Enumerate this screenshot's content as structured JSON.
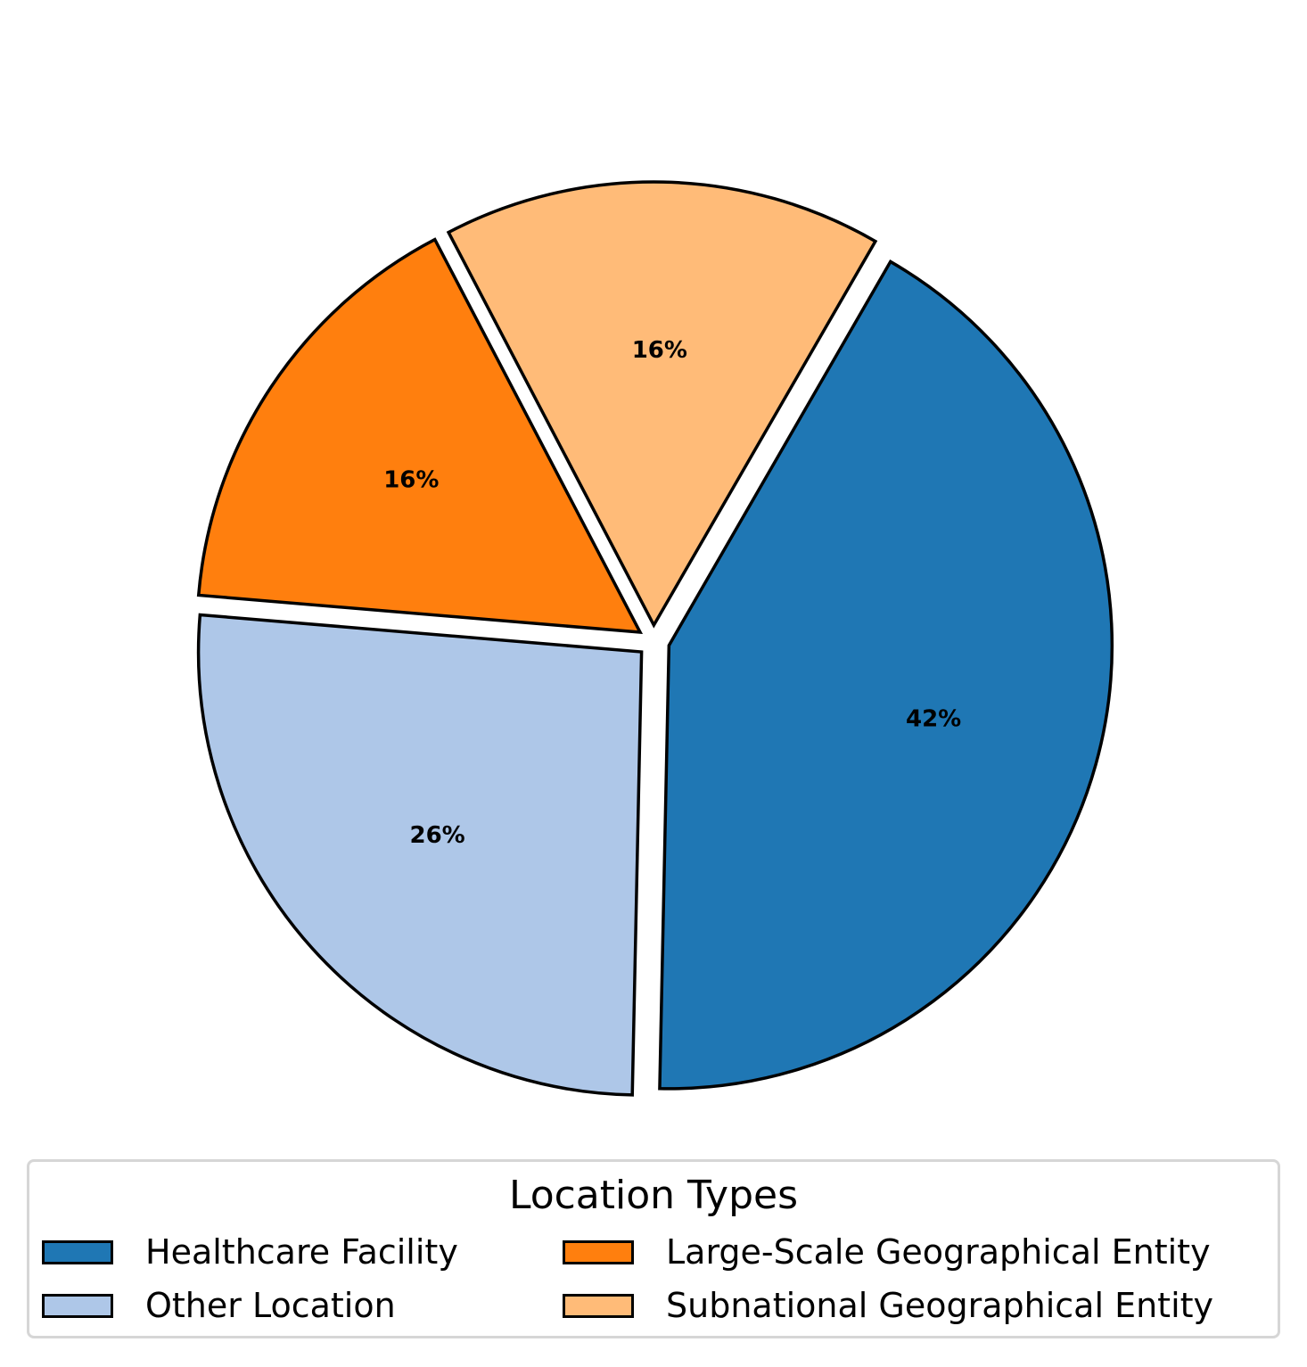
{
  "chart_data": {
    "type": "pie",
    "title": "",
    "start_angle_deg": 60,
    "direction": "clockwise",
    "slices": [
      {
        "label": "Healthcare Facility",
        "value": 42,
        "pct_label": "42%",
        "color": "#1f77b4"
      },
      {
        "label": "Other Location",
        "value": 26,
        "pct_label": "26%",
        "color": "#aec7e8"
      },
      {
        "label": "Large-Scale Geographical Entity",
        "value": 16,
        "pct_label": "16%",
        "color": "#ff7f0e"
      },
      {
        "label": "Subnational Geographical Entity",
        "value": 16,
        "pct_label": "16%",
        "color": "#ffbb78"
      }
    ],
    "edge_color": "#000000",
    "legend": {
      "title": "Location Types",
      "placement": "bottom-center",
      "columns": 2
    }
  }
}
